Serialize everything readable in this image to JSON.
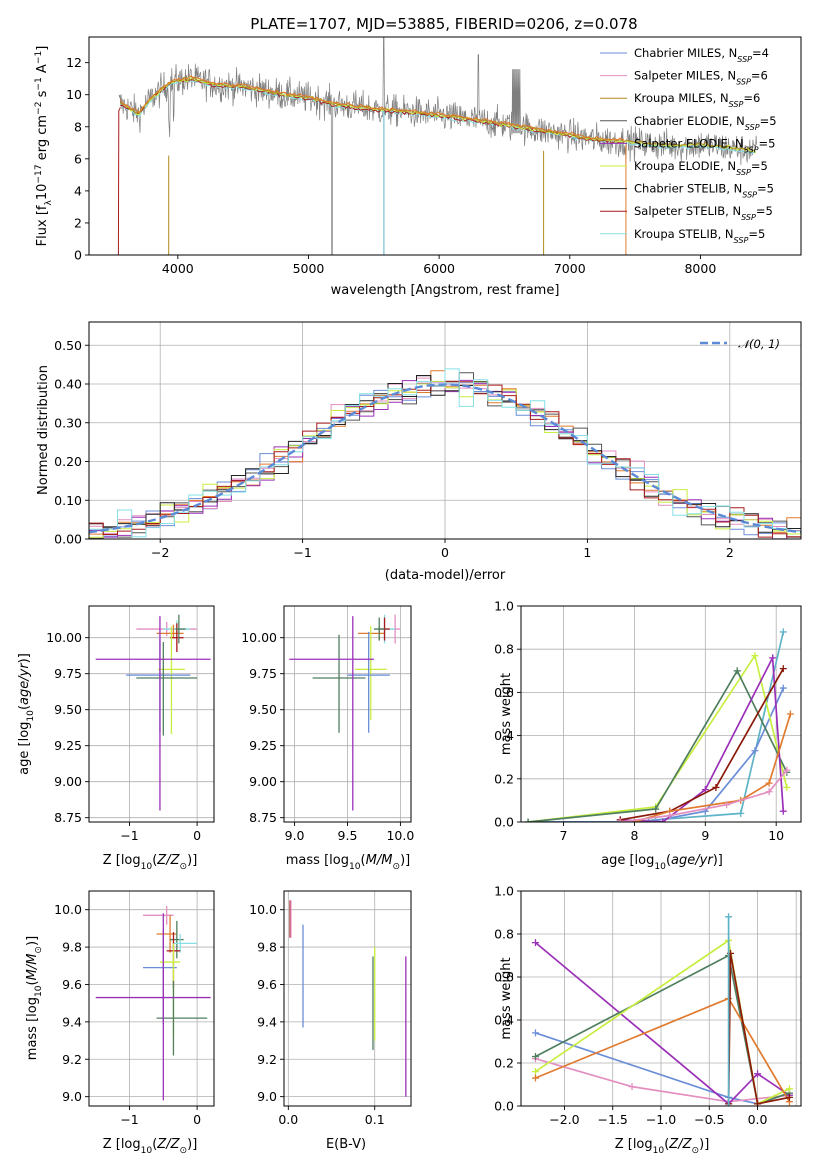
{
  "title": "PLATE=1707, MJD=53885, FIBERID=0206, z=0.078",
  "models": [
    {
      "name": "Chabrier MILES",
      "nssp": "4",
      "color": "#6a8ed8"
    },
    {
      "name": "Salpeter MILES",
      "nssp": "6",
      "color": "#e38ec0"
    },
    {
      "name": "Kroupa MILES",
      "nssp": "6",
      "color": "#b08a1a"
    },
    {
      "name": "Chabrier ELODIE",
      "nssp": "5",
      "color": "#555555"
    },
    {
      "name": "Salpeter ELODIE",
      "nssp": "5",
      "color": "#9b30b8"
    },
    {
      "name": "Kroupa ELODIE",
      "nssp": "5",
      "color": "#c8ee40"
    },
    {
      "name": "Chabrier STELIB",
      "nssp": "5",
      "color": "#222222"
    },
    {
      "name": "Salpeter STELIB",
      "nssp": "5",
      "color": "#aa1b1b"
    },
    {
      "name": "Kroupa STELIB",
      "nssp": "5",
      "color": "#86e0e6"
    }
  ],
  "extra_colors": {
    "orange": "#e07a2f",
    "green": "#4f7f5f",
    "darkred": "#8b1a0a",
    "teal": "#5fb3c8"
  },
  "chart_data": [
    {
      "type": "line",
      "id": "spectrum",
      "title": "PLATE=1707, MJD=53885, FIBERID=0206, z=0.078",
      "xlabel": "wavelength [Angstrom, rest frame]",
      "ylabel": "Flux [f_λ 10^-17 erg cm^-2 s^-1 A^-1]",
      "xlim": [
        3320,
        8770
      ],
      "ylim": [
        0,
        13.6
      ],
      "xticks": [
        4000,
        5000,
        6000,
        7000,
        8000
      ],
      "yticks": [
        0,
        2,
        4,
        6,
        8,
        10,
        12
      ],
      "legend_location": "upper right",
      "continuum_points": [
        [
          3550,
          9.5
        ],
        [
          3700,
          8.8
        ],
        [
          3800,
          9.8
        ],
        [
          3950,
          10.8
        ],
        [
          4100,
          11.0
        ],
        [
          4300,
          10.6
        ],
        [
          4500,
          10.5
        ],
        [
          4800,
          10.0
        ],
        [
          5000,
          9.8
        ],
        [
          5200,
          9.4
        ],
        [
          5500,
          9.1
        ],
        [
          5800,
          8.9
        ],
        [
          6000,
          8.7
        ],
        [
          6300,
          8.4
        ],
        [
          6600,
          8.0
        ],
        [
          6900,
          7.6
        ],
        [
          7200,
          7.2
        ],
        [
          7500,
          7.0
        ],
        [
          7800,
          6.8
        ],
        [
          8000,
          6.9
        ],
        [
          8400,
          6.5
        ]
      ]
    },
    {
      "type": "bar",
      "id": "residuals",
      "xlabel": "(data-model)/error",
      "ylabel": "Normed distribution",
      "xlim": [
        -2.5,
        2.5
      ],
      "ylim": [
        0,
        0.56
      ],
      "xticks": [
        -2,
        -1,
        0,
        1,
        2
      ],
      "yticks": [
        0.0,
        0.1,
        0.2,
        0.3,
        0.4,
        0.5
      ],
      "reference_label": "𝒩(0, 1)",
      "reference_color": "#5b8bd6",
      "bin_width": 0.1
    },
    {
      "type": "scatter",
      "id": "age-vs-z",
      "xlabel": "Z [log10(Z/Z⊙)]",
      "ylabel": "age  [log10(age/yr)]",
      "xlim": [
        -1.6,
        0.25
      ],
      "ylim": [
        8.72,
        10.22
      ],
      "xticks": [
        -1,
        0
      ],
      "yticks": [
        8.75,
        9.0,
        9.25,
        9.5,
        9.75,
        10.0
      ],
      "points": [
        {
          "x": -0.45,
          "y": 10.06,
          "xerr": [
            0.45,
            0.45
          ],
          "yerr": [
            0.05,
            0.05
          ],
          "color": "#e38ec0"
        },
        {
          "x": -0.3,
          "y": 10.06,
          "xerr": [
            0.2,
            0.2
          ],
          "yerr": [
            0.06,
            0.06
          ],
          "color": "#86e0e6"
        },
        {
          "x": -0.35,
          "y": 10.03,
          "xerr": [
            0.25,
            0.15
          ],
          "yerr": [
            0.03,
            0.06
          ],
          "color": "#e07a2f"
        },
        {
          "x": -0.3,
          "y": 10.0,
          "xerr": [
            0.1,
            0.1
          ],
          "yerr": [
            0.1,
            0.1
          ],
          "color": "#aa1b1b"
        },
        {
          "x": -0.27,
          "y": 10.06,
          "xerr": [
            0.05,
            0.1
          ],
          "yerr": [
            0.1,
            0.1
          ],
          "color": "#4f7f5f"
        },
        {
          "x": -0.38,
          "y": 9.78,
          "xerr": [
            0.2,
            0.2
          ],
          "yerr": [
            0.45,
            0.3
          ],
          "color": "#c8ee40"
        },
        {
          "x": -0.55,
          "y": 9.74,
          "xerr": [
            0.5,
            0.45
          ],
          "yerr": [
            0.4,
            0.25
          ],
          "color": "#6a8ed8"
        },
        {
          "x": -0.5,
          "y": 9.72,
          "xerr": [
            0.4,
            0.5
          ],
          "yerr": [
            0.4,
            0.25
          ],
          "color": "#4f7f5f"
        },
        {
          "x": -0.55,
          "y": 9.85,
          "xerr": [
            0.95,
            0.75
          ],
          "yerr": [
            1.05,
            0.3
          ],
          "color": "#9b30b8"
        }
      ]
    },
    {
      "type": "scatter",
      "id": "age-vs-mass",
      "xlabel": "mass [log10(M/M⊙)]",
      "ylabel": "",
      "xlim": [
        8.9,
        10.1
      ],
      "ylim": [
        8.72,
        10.22
      ],
      "xticks": [
        9.0,
        9.5,
        10.0
      ],
      "yticks": [
        8.75,
        9.0,
        9.25,
        9.5,
        9.75,
        10.0
      ],
      "points": [
        {
          "x": 9.95,
          "y": 10.06,
          "xerr": [
            0.05,
            0.05
          ],
          "yerr": [
            0.1,
            0.1
          ],
          "color": "#e38ec0"
        },
        {
          "x": 9.85,
          "y": 10.06,
          "xerr": [
            0.1,
            0.1
          ],
          "yerr": [
            0.1,
            0.1
          ],
          "color": "#86e0e6"
        },
        {
          "x": 9.8,
          "y": 10.03,
          "xerr": [
            0.2,
            0.05
          ],
          "yerr": [
            0.05,
            0.05
          ],
          "color": "#e07a2f"
        },
        {
          "x": 9.85,
          "y": 10.06,
          "xerr": [
            0.05,
            0.05
          ],
          "yerr": [
            0.08,
            0.08
          ],
          "color": "#aa1b1b"
        },
        {
          "x": 9.8,
          "y": 10.06,
          "xerr": [
            0.05,
            0.05
          ],
          "yerr": [
            0.08,
            0.08
          ],
          "color": "#4f7f5f"
        },
        {
          "x": 9.72,
          "y": 9.78,
          "xerr": [
            0.15,
            0.15
          ],
          "yerr": [
            0.35,
            0.3
          ],
          "color": "#c8ee40"
        },
        {
          "x": 9.7,
          "y": 9.74,
          "xerr": [
            0.2,
            0.2
          ],
          "yerr": [
            0.4,
            0.3
          ],
          "color": "#6a8ed8"
        },
        {
          "x": 9.42,
          "y": 9.72,
          "xerr": [
            0.25,
            0.25
          ],
          "yerr": [
            0.38,
            0.3
          ],
          "color": "#4f7f5f"
        },
        {
          "x": 9.55,
          "y": 9.85,
          "xerr": [
            0.6,
            0.2
          ],
          "yerr": [
            1.05,
            0.3
          ],
          "color": "#9b30b8"
        }
      ]
    },
    {
      "type": "line",
      "id": "weight-vs-age",
      "xlabel": "age  [log10(age/yr)]",
      "ylabel": "mass weight",
      "xlim": [
        6.4,
        10.35
      ],
      "ylim": [
        0,
        1.0
      ],
      "xticks": [
        7,
        8,
        9,
        10
      ],
      "yticks": [
        0.0,
        0.2,
        0.4,
        0.6,
        0.8,
        1.0
      ],
      "series": [
        {
          "color": "#5fb3c8",
          "x": [
            6.5,
            8.0,
            8.3,
            9.5,
            10.1
          ],
          "y": [
            0.0,
            0.0,
            0.01,
            0.04,
            0.88
          ]
        },
        {
          "color": "#6a8ed8",
          "x": [
            6.5,
            8.2,
            9.0,
            9.7,
            10.1
          ],
          "y": [
            0.0,
            0.0,
            0.05,
            0.33,
            0.62
          ]
        },
        {
          "color": "#c8ee40",
          "x": [
            6.5,
            8.3,
            9.7,
            10.15
          ],
          "y": [
            0.0,
            0.07,
            0.77,
            0.16
          ]
        },
        {
          "color": "#4f7f5f",
          "x": [
            6.5,
            8.3,
            9.45,
            10.15
          ],
          "y": [
            0.0,
            0.06,
            0.7,
            0.23
          ]
        },
        {
          "color": "#9b30b8",
          "x": [
            7.8,
            8.4,
            9.0,
            9.95,
            10.1
          ],
          "y": [
            0.01,
            0.0,
            0.15,
            0.76,
            0.05
          ]
        },
        {
          "color": "#8b1a0a",
          "x": [
            7.8,
            8.5,
            9.15,
            10.1
          ],
          "y": [
            0.01,
            0.05,
            0.16,
            0.71
          ]
        },
        {
          "color": "#e07a2f",
          "x": [
            8.0,
            8.5,
            9.5,
            9.9,
            10.2
          ],
          "y": [
            0.0,
            0.05,
            0.1,
            0.18,
            0.5
          ]
        },
        {
          "color": "#e38ec0",
          "x": [
            7.8,
            8.5,
            9.3,
            9.9,
            10.15
          ],
          "y": [
            0.0,
            0.03,
            0.08,
            0.14,
            0.24
          ]
        }
      ]
    },
    {
      "type": "scatter",
      "id": "mass-vs-z",
      "xlabel": "Z [log10(Z/Z⊙)]",
      "ylabel": "mass [log10(M/M⊙)]",
      "xlim": [
        -1.6,
        0.25
      ],
      "ylim": [
        8.95,
        10.1
      ],
      "xticks": [
        -1,
        0
      ],
      "yticks": [
        9.0,
        9.2,
        9.4,
        9.6,
        9.8,
        10.0
      ],
      "points": [
        {
          "x": -0.45,
          "y": 9.97,
          "xerr": [
            0.35,
            0.1
          ],
          "yerr": [
            0.05,
            0.05
          ],
          "color": "#e38ec0"
        },
        {
          "x": -0.4,
          "y": 9.87,
          "xerr": [
            0.2,
            0.1
          ],
          "yerr": [
            0.1,
            0.1
          ],
          "color": "#e07a2f"
        },
        {
          "x": -0.3,
          "y": 9.84,
          "xerr": [
            0.1,
            0.1
          ],
          "yerr": [
            0.1,
            0.1
          ],
          "color": "#4f7f5f"
        },
        {
          "x": -0.25,
          "y": 9.82,
          "xerr": [
            0.1,
            0.25
          ],
          "yerr": [
            0.05,
            0.05
          ],
          "color": "#86e0e6"
        },
        {
          "x": -0.35,
          "y": 9.78,
          "xerr": [
            0.1,
            0.1
          ],
          "yerr": [
            0.2,
            0.1
          ],
          "color": "#aa1b1b"
        },
        {
          "x": -0.5,
          "y": 9.69,
          "xerr": [
            0.3,
            0.2
          ],
          "yerr": [
            0.3,
            0.2
          ],
          "color": "#6a8ed8"
        },
        {
          "x": -0.35,
          "y": 9.72,
          "xerr": [
            0.2,
            0.1
          ],
          "yerr": [
            0.4,
            0.1
          ],
          "color": "#c8ee40"
        },
        {
          "x": -0.35,
          "y": 9.42,
          "xerr": [
            0.25,
            0.5
          ],
          "yerr": [
            0.2,
            0.2
          ],
          "color": "#4f7f5f"
        },
        {
          "x": -0.5,
          "y": 9.53,
          "xerr": [
            1.0,
            0.7
          ],
          "yerr": [
            0.55,
            0.45
          ],
          "color": "#9b30b8"
        }
      ]
    },
    {
      "type": "scatter",
      "id": "mass-vs-ebv",
      "xlabel": "E(B-V)",
      "ylabel": "",
      "xlim": [
        -0.005,
        0.142
      ],
      "ylim": [
        8.95,
        10.1
      ],
      "xticks": [
        0.0,
        0.1
      ],
      "yticks": [
        9.0,
        9.2,
        9.4,
        9.6,
        9.8,
        10.0
      ],
      "points": [
        {
          "x": 0.002,
          "y": 9.95,
          "yerr": [
            0.1,
            0.1
          ],
          "color": "#aa1b1b"
        },
        {
          "x": 0.003,
          "y": 9.95,
          "yerr": [
            0.1,
            0.1
          ],
          "color": "#e38ec0"
        },
        {
          "x": 0.017,
          "y": 9.65,
          "yerr": [
            0.28,
            0.27
          ],
          "color": "#6a8ed8"
        },
        {
          "x": 0.098,
          "y": 9.5,
          "yerr": [
            0.25,
            0.25
          ],
          "color": "#4f7f5f"
        },
        {
          "x": 0.1,
          "y": 9.55,
          "yerr": [
            0.25,
            0.25
          ],
          "color": "#c8ee40"
        },
        {
          "x": 0.136,
          "y": 9.38,
          "yerr": [
            0.38,
            0.37
          ],
          "color": "#9b30b8"
        }
      ]
    },
    {
      "type": "line",
      "id": "weight-vs-z",
      "xlabel": "Z [log10(Z/Z⊙)]",
      "ylabel": "mass weight",
      "xlim": [
        -2.45,
        0.45
      ],
      "ylim": [
        0,
        1.0
      ],
      "xticks": [
        -2.0,
        -1.5,
        -1.0,
        -0.5,
        0.0
      ],
      "yticks": [
        0.0,
        0.2,
        0.4,
        0.6,
        0.8,
        1.0
      ],
      "series": [
        {
          "color": "#6a8ed8",
          "x": [
            -2.3,
            -0.3,
            0.0,
            0.33
          ],
          "y": [
            0.34,
            0.04,
            0.01,
            0.06
          ]
        },
        {
          "color": "#e38ec0",
          "x": [
            -2.3,
            -1.3,
            -0.3,
            0.33
          ],
          "y": [
            0.22,
            0.09,
            0.02,
            0.05
          ]
        },
        {
          "color": "#9b30b8",
          "x": [
            -2.3,
            -0.3,
            0.0,
            0.33
          ],
          "y": [
            0.76,
            0.01,
            0.15,
            0.05
          ]
        },
        {
          "color": "#4f7f5f",
          "x": [
            -2.3,
            -0.3,
            0.0,
            0.33
          ],
          "y": [
            0.23,
            0.7,
            0.01,
            0.06
          ]
        },
        {
          "color": "#c8ee40",
          "x": [
            -2.3,
            -0.3,
            0.0,
            0.33
          ],
          "y": [
            0.16,
            0.77,
            0.01,
            0.08
          ]
        },
        {
          "color": "#e07a2f",
          "x": [
            -2.3,
            -0.3,
            0.33
          ],
          "y": [
            0.13,
            0.5,
            0.02
          ]
        },
        {
          "color": "#8b1a0a",
          "x": [
            -0.3,
            -0.28,
            0.0,
            0.33
          ],
          "y": [
            0.01,
            0.71,
            0.01,
            0.04
          ]
        },
        {
          "color": "#5fb3c8",
          "x": [
            -0.3,
            -0.3
          ],
          "y": [
            0.0,
            0.88
          ]
        }
      ]
    }
  ]
}
